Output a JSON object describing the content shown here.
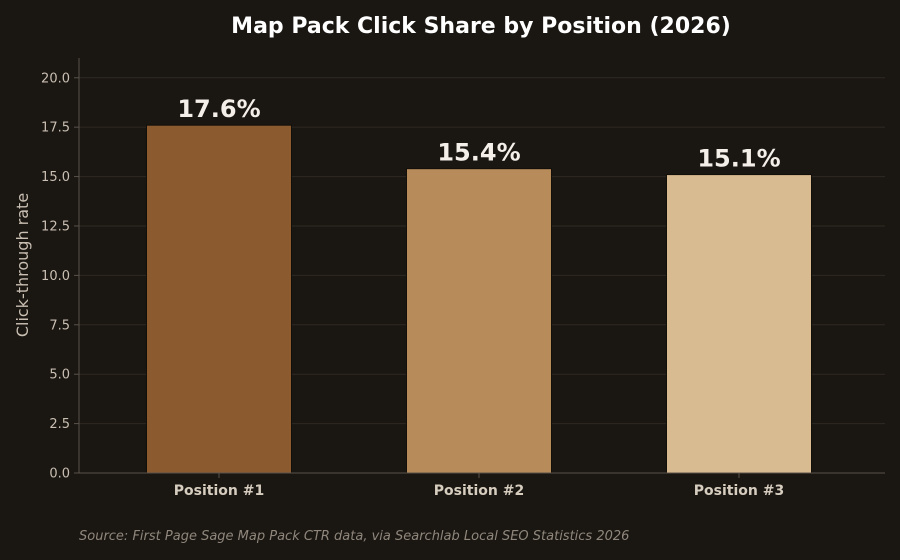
{
  "chart_data": {
    "type": "bar",
    "title": "Map Pack Click Share by Position (2026)",
    "xlabel": "",
    "ylabel": "Click-through rate",
    "categories": [
      "Position #1",
      "Position #2",
      "Position #3"
    ],
    "values": [
      17.6,
      15.4,
      15.1
    ],
    "data_labels": [
      "17.6%",
      "15.4%",
      "15.1%"
    ],
    "bar_colors": [
      "#8b5a2f",
      "#b88b5a",
      "#d9bb91"
    ],
    "ylim": [
      0,
      21
    ],
    "yticks": [
      0,
      2.5,
      5,
      7.5,
      10,
      12.5,
      15,
      17.5,
      20
    ],
    "ytick_labels": [
      "0.0",
      "2.5",
      "5.0",
      "7.5",
      "10.0",
      "12.5",
      "15.0",
      "17.5",
      "20.0"
    ],
    "grid": true,
    "legend": "none"
  },
  "source": "Source: First Page Sage Map Pack CTR data, via Searchlab Local SEO Statistics 2026",
  "colors": {
    "background": "#1a1612",
    "grid": "#2e2923",
    "axis": "#5a534b"
  }
}
